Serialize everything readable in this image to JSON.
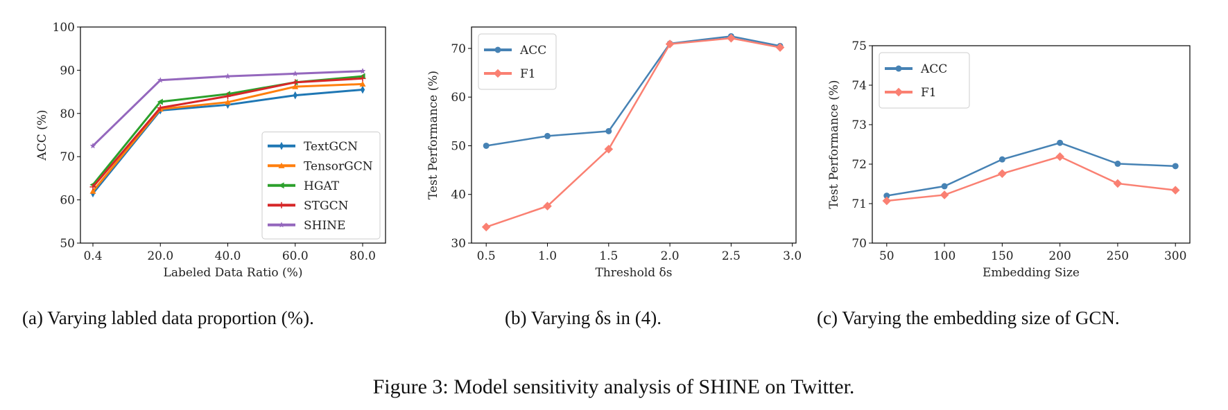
{
  "chart_data": [
    {
      "type": "line",
      "xlabel": "Labeled Data Ratio (%)",
      "ylabel": "ACC (%)",
      "categories": [
        "0.4",
        "20.0",
        "40.0",
        "60.0",
        "80.0"
      ],
      "ylim": [
        50,
        100
      ],
      "yticks": [
        50,
        60,
        70,
        80,
        90,
        100
      ],
      "legend": "lower-right",
      "grid": false,
      "caption": "(a)  Varying labled data proportion (%).",
      "series": [
        {
          "name": "TextGCN",
          "color": "#1f77b4",
          "marker": "thin-diamond",
          "values": [
            61.5,
            80.7,
            82.0,
            84.2,
            85.5
          ]
        },
        {
          "name": "TensorGCN",
          "color": "#ff7f0e",
          "marker": "triangle-up",
          "values": [
            62.0,
            81.0,
            82.6,
            86.2,
            86.8
          ]
        },
        {
          "name": "HGAT",
          "color": "#2ca02c",
          "marker": "triangle-left",
          "values": [
            63.5,
            82.7,
            84.5,
            87.2,
            88.6
          ]
        },
        {
          "name": "STGCN",
          "color": "#d62728",
          "marker": "plus",
          "values": [
            63.0,
            81.3,
            84.0,
            87.2,
            88.1
          ]
        },
        {
          "name": "SHINE",
          "color": "#9467bd",
          "marker": "star",
          "values": [
            72.5,
            87.7,
            88.6,
            89.2,
            89.8
          ]
        }
      ]
    },
    {
      "type": "line",
      "xlabel": "Threshold δs",
      "ylabel": "Test Performance (%)",
      "x": [
        0.5,
        1.0,
        1.5,
        2.0,
        2.5,
        2.9
      ],
      "xticks": [
        "0.5",
        "1.0",
        "1.5",
        "2.0",
        "2.5",
        "3.0"
      ],
      "xlim": [
        0.38,
        3.03
      ],
      "ylim": [
        30,
        74.4
      ],
      "yticks": [
        30,
        40,
        50,
        60,
        70
      ],
      "legend": "top-left",
      "grid": false,
      "caption": "(b)  Varying δs in (4).",
      "series": [
        {
          "name": "ACC",
          "color": "#4682b4",
          "marker": "circle",
          "values": [
            50.0,
            52.0,
            53.0,
            71.0,
            72.5,
            70.5
          ]
        },
        {
          "name": "F1",
          "color": "#fa8072",
          "marker": "diamond",
          "values": [
            33.3,
            37.6,
            49.3,
            70.9,
            72.1,
            70.2
          ]
        }
      ]
    },
    {
      "type": "line",
      "xlabel": "Embedding Size",
      "ylabel": "Test Performance (%)",
      "x": [
        50,
        100,
        150,
        200,
        250,
        300
      ],
      "xticks": [
        "50",
        "100",
        "150",
        "200",
        "250",
        "300"
      ],
      "xlim": [
        37.5,
        312.5
      ],
      "ylim": [
        70,
        75
      ],
      "yticks": [
        70,
        71,
        72,
        73,
        74,
        75
      ],
      "legend": "top-left",
      "grid": false,
      "caption": "(c)  Varying the embedding size of GCN.",
      "series": [
        {
          "name": "ACC",
          "color": "#4682b4",
          "marker": "circle",
          "values": [
            71.2,
            71.44,
            72.12,
            72.54,
            72.01,
            71.95
          ]
        },
        {
          "name": "F1",
          "color": "#fa8072",
          "marker": "diamond",
          "values": [
            71.07,
            71.22,
            71.76,
            72.19,
            71.51,
            71.34
          ]
        }
      ]
    }
  ],
  "figure_caption": "Figure 3: Model sensitivity analysis of SHINE on Twitter."
}
